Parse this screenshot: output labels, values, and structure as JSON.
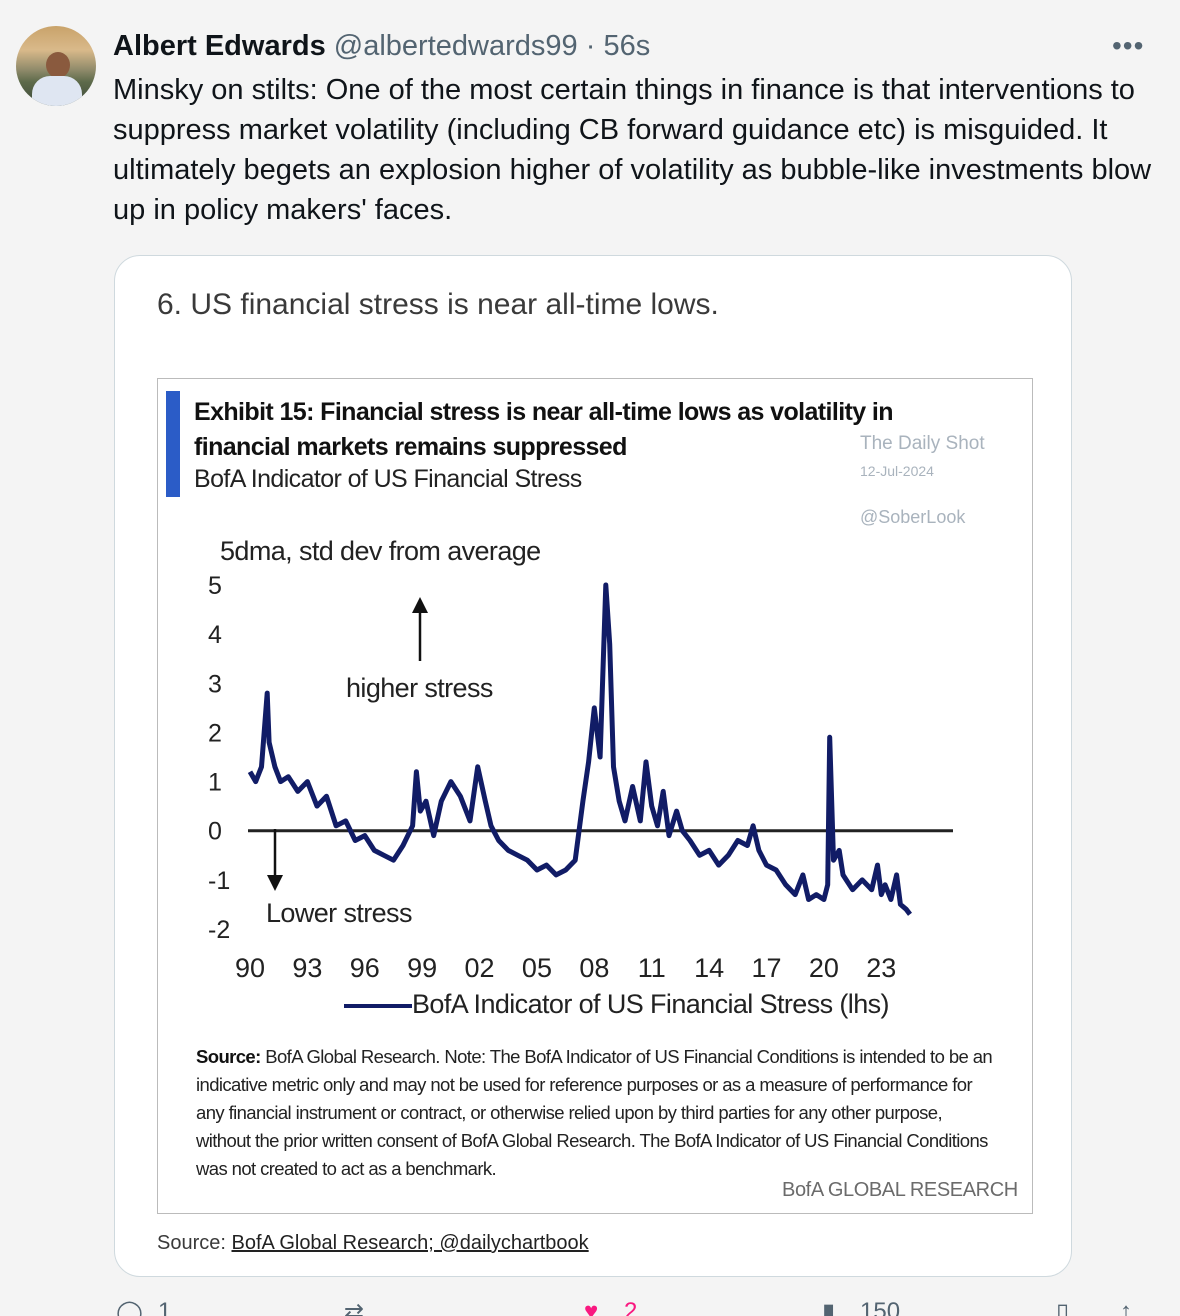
{
  "tweet": {
    "author_name": "Albert Edwards",
    "handle": "@albertedwards99",
    "separator": "·",
    "time": "56s",
    "more": "•••",
    "text": "Minsky on stilts: One of the most certain things in finance is that interventions to suppress market volatility (including CB forward guidance etc) is misguided. It ultimately begets an explosion higher of volatility as bubble-like investments blow up in policy makers' faces."
  },
  "card": {
    "title": "6. US financial stress is near all-time lows.",
    "source_prefix": "Source:",
    "source_link": "BofA Global Research; @dailychartbook"
  },
  "exhibit": {
    "title": "Exhibit 15: Financial stress is near all-time lows as volatility in financial markets remains suppressed",
    "subtitle": "BofA Indicator of US Financial Stress",
    "watermark_1": "The Daily Shot",
    "watermark_2": "12-Jul-2024",
    "watermark_3": "@SoberLook",
    "source_label": "Source:",
    "source_text": "BofA Global Research. Note: The BofA Indicator of US Financial Conditions is intended to be an indicative metric only and may not be used for reference purposes or as a measure of performance for any financial instrument or contract, or otherwise relied upon by third parties for any other purpose, without the prior written consent of BofA Global Research. The BofA Indicator of US Financial Conditions was not created to act as a benchmark.",
    "brand": "BofA GLOBAL RESEARCH"
  },
  "chart_data": {
    "type": "line",
    "title": "Exhibit 15: Financial stress is near all-time lows as volatility in financial markets remains suppressed",
    "subtitle": "BofA Indicator of US Financial Stress",
    "ylabel": "5dma, std dev from average",
    "xlabel": "",
    "ylim": [
      -2,
      5
    ],
    "yticks": [
      "5",
      "4",
      "3",
      "2",
      "1",
      "0",
      "-1",
      "-2"
    ],
    "xlim": [
      1990,
      2024.5
    ],
    "xticks": [
      "90",
      "93",
      "96",
      "99",
      "02",
      "05",
      "08",
      "11",
      "14",
      "17",
      "20",
      "23"
    ],
    "annotations": {
      "up": "higher stress",
      "down": "Lower stress"
    },
    "zero_line": true,
    "grid": false,
    "legend": "bottom",
    "series": [
      {
        "name": "BofA Indicator of US Financial Stress (lhs)",
        "color": "#111c66",
        "x": [
          1990.0,
          1990.3,
          1990.6,
          1990.9,
          1991.0,
          1991.3,
          1991.6,
          1992.0,
          1992.5,
          1993.0,
          1993.5,
          1994.0,
          1994.5,
          1995.0,
          1995.5,
          1996.0,
          1996.5,
          1997.0,
          1997.5,
          1998.0,
          1998.5,
          1998.7,
          1998.9,
          1999.2,
          1999.6,
          2000.0,
          2000.5,
          2001.0,
          2001.5,
          2001.9,
          2002.3,
          2002.6,
          2003.0,
          2003.5,
          2004.0,
          2004.5,
          2005.0,
          2005.5,
          2006.0,
          2006.5,
          2007.0,
          2007.4,
          2007.7,
          2008.0,
          2008.3,
          2008.6,
          2008.8,
          2009.0,
          2009.3,
          2009.6,
          2010.0,
          2010.4,
          2010.7,
          2011.0,
          2011.3,
          2011.6,
          2011.9,
          2012.3,
          2012.6,
          2013.0,
          2013.5,
          2014.0,
          2014.5,
          2015.0,
          2015.5,
          2016.0,
          2016.3,
          2016.6,
          2017.0,
          2017.5,
          2018.0,
          2018.5,
          2018.9,
          2019.2,
          2019.6,
          2020.0,
          2020.2,
          2020.3,
          2020.5,
          2020.8,
          2021.0,
          2021.5,
          2022.0,
          2022.5,
          2022.8,
          2023.0,
          2023.2,
          2023.5,
          2023.8,
          2024.0,
          2024.3,
          2024.5
        ],
        "values": [
          1.2,
          1.0,
          1.3,
          2.8,
          1.8,
          1.3,
          1.0,
          1.1,
          0.8,
          1.0,
          0.5,
          0.7,
          0.1,
          0.2,
          -0.2,
          -0.1,
          -0.4,
          -0.5,
          -0.6,
          -0.3,
          0.1,
          1.2,
          0.4,
          0.6,
          -0.1,
          0.6,
          1.0,
          0.7,
          0.2,
          1.3,
          0.6,
          0.1,
          -0.2,
          -0.4,
          -0.5,
          -0.6,
          -0.8,
          -0.7,
          -0.9,
          -0.8,
          -0.6,
          0.6,
          1.4,
          2.5,
          1.5,
          5.0,
          3.8,
          1.3,
          0.6,
          0.2,
          0.9,
          0.2,
          1.4,
          0.5,
          0.1,
          0.8,
          -0.1,
          0.4,
          0.0,
          -0.2,
          -0.5,
          -0.4,
          -0.7,
          -0.5,
          -0.2,
          -0.3,
          0.1,
          -0.4,
          -0.7,
          -0.8,
          -1.1,
          -1.3,
          -0.9,
          -1.4,
          -1.3,
          -1.4,
          -1.1,
          1.9,
          -0.6,
          -0.4,
          -0.9,
          -1.2,
          -1.0,
          -1.2,
          -0.7,
          -1.3,
          -1.1,
          -1.4,
          -0.9,
          -1.5,
          -1.6,
          -1.7
        ]
      }
    ]
  },
  "actions": {
    "reply_count": "1",
    "like_count": "2",
    "view_count": "150"
  }
}
